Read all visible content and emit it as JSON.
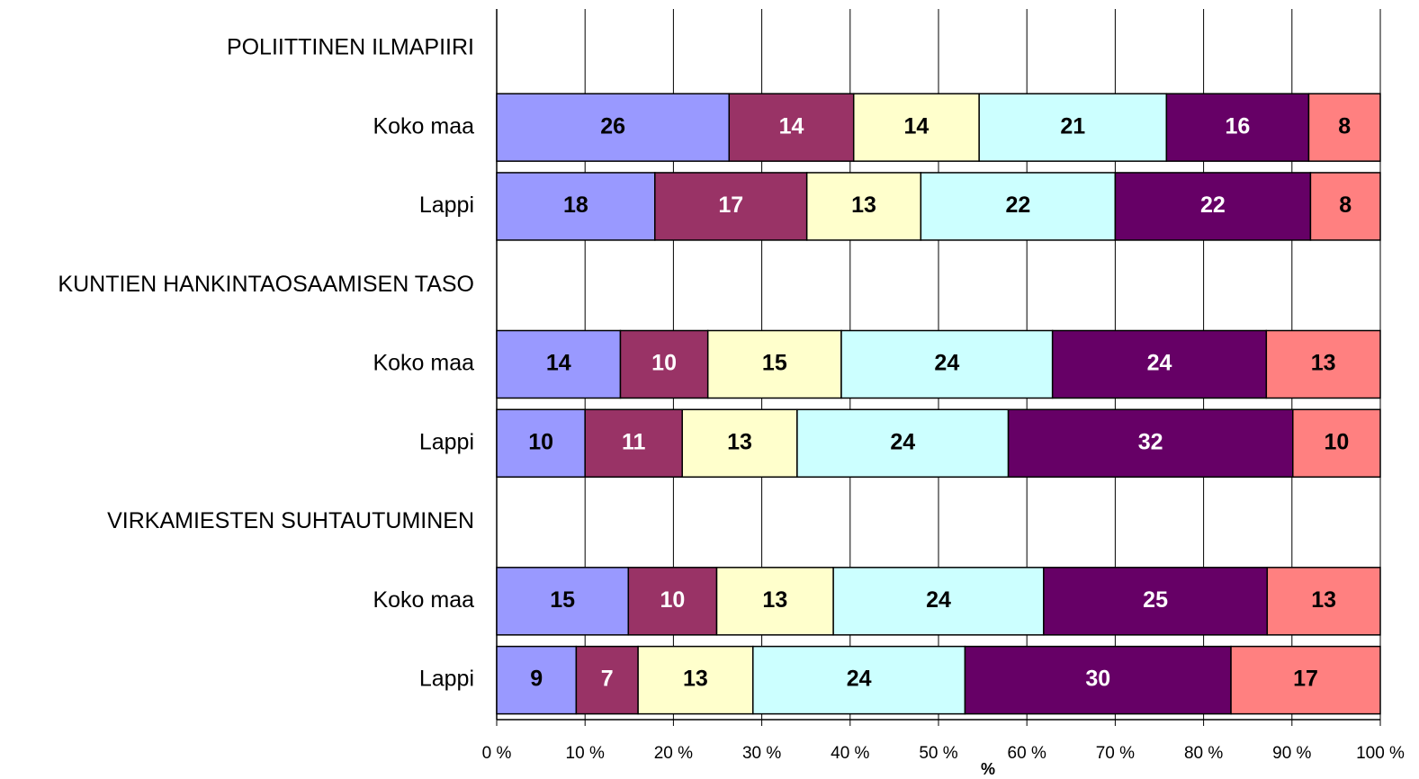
{
  "chart_data": {
    "type": "stacked-barh",
    "categories": [
      "POLIITTINEN ILMAPIIRI",
      "Koko maa",
      "Lappi",
      "KUNTIEN HANKINTAOSAAMISEN TASO",
      "Koko maa",
      "Lappi",
      "VIRKAMIESTEN SUHTAUTUMINEN",
      "Koko maa",
      "Lappi"
    ],
    "series": [
      {
        "color": "#9999ff",
        "values": [
          null,
          26.3,
          17.9,
          null,
          14.0,
          10.0,
          null,
          14.9,
          9.0
        ],
        "value_labels": [
          null,
          "26",
          "18",
          null,
          "14",
          "10",
          null,
          "15",
          "9"
        ]
      },
      {
        "color": "#993366",
        "values": [
          null,
          14.1,
          17.2,
          null,
          9.9,
          11.0,
          null,
          10.0,
          7.0
        ],
        "value_labels": [
          null,
          "14",
          "17",
          null,
          "10",
          "11",
          null,
          "10",
          "7"
        ]
      },
      {
        "color": "#ffffcc",
        "values": [
          null,
          14.2,
          12.9,
          null,
          15.1,
          13.0,
          null,
          13.2,
          13.0
        ],
        "value_labels": [
          null,
          "14",
          "13",
          null,
          "15",
          "13",
          null,
          "13",
          "13"
        ]
      },
      {
        "color": "#ccffff",
        "values": [
          null,
          21.2,
          22.0,
          null,
          23.9,
          23.9,
          null,
          23.8,
          24.0
        ],
        "value_labels": [
          null,
          "21",
          "22",
          null,
          "24",
          "24",
          null,
          "24",
          "24"
        ]
      },
      {
        "color": "#660066",
        "values": [
          null,
          16.1,
          22.1,
          null,
          24.2,
          32.2,
          null,
          25.3,
          30.1
        ],
        "value_labels": [
          null,
          "16",
          "22",
          null,
          "24",
          "32",
          null,
          "25",
          "30"
        ]
      },
      {
        "color": "#ff8080",
        "values": [
          null,
          8.1,
          7.9,
          null,
          12.9,
          9.9,
          null,
          12.8,
          16.9
        ],
        "value_labels": [
          null,
          "8",
          "8",
          null,
          "13",
          "10",
          null,
          "13",
          "17"
        ]
      }
    ],
    "x_label": "%",
    "xlim": [
      0,
      100
    ],
    "xticks": [
      {
        "value": 0,
        "label": "0 %"
      },
      {
        "value": 10,
        "label": "10 %"
      },
      {
        "value": 20,
        "label": "20 %"
      },
      {
        "value": 30,
        "label": "30 %"
      },
      {
        "value": 40,
        "label": "40 %"
      },
      {
        "value": 50,
        "label": "50 %"
      },
      {
        "value": 60,
        "label": "60 %"
      },
      {
        "value": 70,
        "label": "70 %"
      },
      {
        "value": 80,
        "label": "80 %"
      },
      {
        "value": 90,
        "label": "90 %"
      },
      {
        "value": 100,
        "label": "100 %"
      }
    ],
    "grid": true
  }
}
